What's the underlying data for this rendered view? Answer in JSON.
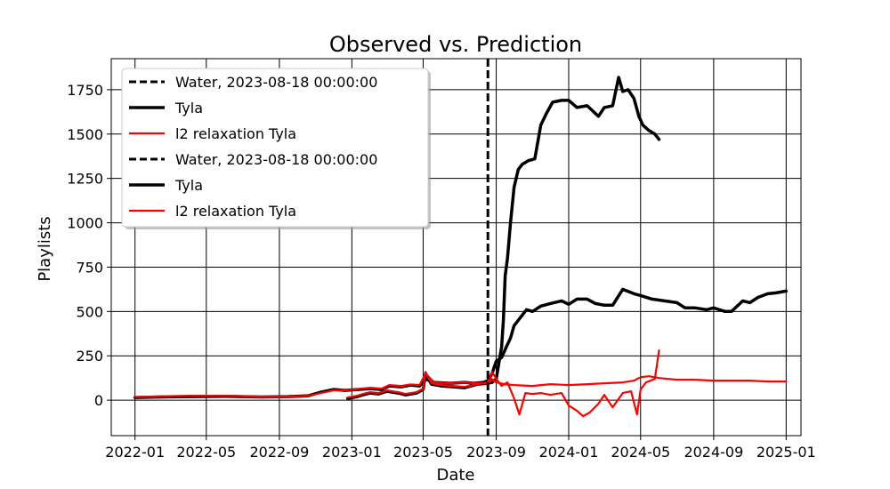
{
  "chart_data": {
    "type": "line",
    "title": "Observed vs. Prediction",
    "xlabel": "Date",
    "ylabel": "Playlists",
    "xlim": [
      "2021-11-22",
      "2025-01-26"
    ],
    "ylim": [
      -200,
      1925
    ],
    "x_ticks": [
      {
        "date": "2022-01-01",
        "label": "2022-01"
      },
      {
        "date": "2022-05-01",
        "label": "2022-05"
      },
      {
        "date": "2022-09-01",
        "label": "2022-09"
      },
      {
        "date": "2023-01-01",
        "label": "2023-01"
      },
      {
        "date": "2023-05-01",
        "label": "2023-05"
      },
      {
        "date": "2023-09-01",
        "label": "2023-09"
      },
      {
        "date": "2024-01-01",
        "label": "2024-01"
      },
      {
        "date": "2024-05-01",
        "label": "2024-05"
      },
      {
        "date": "2024-09-01",
        "label": "2024-09"
      },
      {
        "date": "2025-01-01",
        "label": "2025-01"
      }
    ],
    "y_ticks": [
      0,
      250,
      500,
      750,
      1000,
      1250,
      1500,
      1750
    ],
    "grid": true,
    "legend_position": "top-left",
    "legend": [
      {
        "label": "Water, 2023-08-18 00:00:00",
        "style": "dashed",
        "color": "#000000"
      },
      {
        "label": "Tyla",
        "style": "solid-thick",
        "color": "#000000"
      },
      {
        "label": "l2 relaxation Tyla",
        "style": "solid",
        "color": "#ff0000"
      },
      {
        "label": "Water, 2023-08-18 00:00:00",
        "style": "dashed",
        "color": "#000000"
      },
      {
        "label": "Tyla",
        "style": "solid-thick",
        "color": "#000000"
      },
      {
        "label": "l2 relaxation Tyla",
        "style": "solid",
        "color": "#ff0000"
      }
    ],
    "vline": {
      "date": "2023-08-18",
      "style": "dashed",
      "color": "#000000"
    },
    "series": [
      {
        "name": "Tyla",
        "color": "#000000",
        "style": "solid-thick",
        "points": [
          [
            "2022-01-01",
            15
          ],
          [
            "2022-02-15",
            18
          ],
          [
            "2022-04-01",
            20
          ],
          [
            "2022-06-01",
            22
          ],
          [
            "2022-08-01",
            18
          ],
          [
            "2022-09-15",
            20
          ],
          [
            "2022-10-20",
            25
          ],
          [
            "2022-11-10",
            45
          ],
          [
            "2022-12-01",
            60
          ],
          [
            "2022-12-20",
            55
          ],
          [
            "2023-01-10",
            60
          ],
          [
            "2023-02-01",
            65
          ],
          [
            "2023-02-20",
            60
          ],
          [
            "2023-03-05",
            80
          ],
          [
            "2023-03-25",
            75
          ],
          [
            "2023-04-10",
            85
          ],
          [
            "2023-04-25",
            80
          ],
          [
            "2023-05-05",
            120
          ],
          [
            "2023-05-20",
            100
          ],
          [
            "2023-06-15",
            95
          ],
          [
            "2023-07-10",
            100
          ],
          [
            "2023-07-25",
            95
          ],
          [
            "2023-08-10",
            100
          ],
          [
            "2023-08-18",
            110
          ],
          [
            "2023-08-25",
            150
          ],
          [
            "2023-09-01",
            220
          ],
          [
            "2023-09-10",
            240
          ],
          [
            "2023-09-18",
            300
          ],
          [
            "2023-09-25",
            350
          ],
          [
            "2023-10-01",
            420
          ],
          [
            "2023-10-08",
            450
          ],
          [
            "2023-10-15",
            480
          ],
          [
            "2023-10-22",
            510
          ],
          [
            "2023-11-01",
            500
          ],
          [
            "2023-11-15",
            530
          ],
          [
            "2023-12-01",
            545
          ],
          [
            "2023-12-20",
            560
          ],
          [
            "2024-01-01",
            540
          ],
          [
            "2024-01-15",
            570
          ],
          [
            "2024-02-01",
            570
          ],
          [
            "2024-02-15",
            545
          ],
          [
            "2024-03-01",
            535
          ],
          [
            "2024-03-15",
            535
          ],
          [
            "2024-04-01",
            625
          ],
          [
            "2024-04-20",
            600
          ],
          [
            "2024-05-01",
            590
          ],
          [
            "2024-05-20",
            570
          ],
          [
            "2024-06-10",
            560
          ],
          [
            "2024-07-01",
            550
          ],
          [
            "2024-07-15",
            520
          ],
          [
            "2024-08-01",
            520
          ],
          [
            "2024-08-20",
            510
          ],
          [
            "2024-09-01",
            520
          ],
          [
            "2024-09-20",
            500
          ],
          [
            "2024-10-01",
            500
          ],
          [
            "2024-10-20",
            560
          ],
          [
            "2024-11-01",
            550
          ],
          [
            "2024-11-15",
            580
          ],
          [
            "2024-12-01",
            600
          ],
          [
            "2024-12-15",
            605
          ],
          [
            "2025-01-01",
            615
          ]
        ]
      },
      {
        "name": "Tyla",
        "color": "#000000",
        "style": "solid-thick",
        "points": [
          [
            "2022-12-25",
            10
          ],
          [
            "2023-01-10",
            20
          ],
          [
            "2023-01-20",
            30
          ],
          [
            "2023-02-01",
            40
          ],
          [
            "2023-02-15",
            35
          ],
          [
            "2023-03-01",
            50
          ],
          [
            "2023-03-20",
            40
          ],
          [
            "2023-04-01",
            30
          ],
          [
            "2023-04-20",
            40
          ],
          [
            "2023-05-01",
            60
          ],
          [
            "2023-05-05",
            150
          ],
          [
            "2023-05-15",
            90
          ],
          [
            "2023-06-01",
            80
          ],
          [
            "2023-06-20",
            75
          ],
          [
            "2023-07-10",
            70
          ],
          [
            "2023-08-01",
            90
          ],
          [
            "2023-08-18",
            95
          ],
          [
            "2023-08-25",
            100
          ],
          [
            "2023-09-01",
            120
          ],
          [
            "2023-09-05",
            200
          ],
          [
            "2023-09-10",
            300
          ],
          [
            "2023-09-13",
            450
          ],
          [
            "2023-09-16",
            700
          ],
          [
            "2023-09-20",
            800
          ],
          [
            "2023-09-25",
            1000
          ],
          [
            "2023-10-01",
            1200
          ],
          [
            "2023-10-08",
            1300
          ],
          [
            "2023-10-15",
            1330
          ],
          [
            "2023-10-25",
            1350
          ],
          [
            "2023-11-05",
            1360
          ],
          [
            "2023-11-15",
            1550
          ],
          [
            "2023-11-25",
            1620
          ],
          [
            "2023-12-05",
            1680
          ],
          [
            "2023-12-20",
            1690
          ],
          [
            "2024-01-01",
            1690
          ],
          [
            "2024-01-15",
            1650
          ],
          [
            "2024-02-01",
            1660
          ],
          [
            "2024-02-20",
            1600
          ],
          [
            "2024-03-01",
            1650
          ],
          [
            "2024-03-15",
            1660
          ],
          [
            "2024-03-25",
            1820
          ],
          [
            "2024-04-01",
            1740
          ],
          [
            "2024-04-10",
            1750
          ],
          [
            "2024-04-20",
            1700
          ],
          [
            "2024-04-28",
            1600
          ],
          [
            "2024-05-05",
            1550
          ],
          [
            "2024-05-15",
            1520
          ],
          [
            "2024-05-25",
            1500
          ],
          [
            "2024-06-01",
            1470
          ]
        ]
      },
      {
        "name": "l2 relaxation Tyla",
        "color": "#ff0000",
        "style": "solid",
        "points": [
          [
            "2022-01-01",
            18
          ],
          [
            "2022-02-15",
            22
          ],
          [
            "2022-04-01",
            25
          ],
          [
            "2022-06-01",
            25
          ],
          [
            "2022-08-01",
            20
          ],
          [
            "2022-09-15",
            20
          ],
          [
            "2022-10-20",
            25
          ],
          [
            "2022-11-10",
            40
          ],
          [
            "2022-12-01",
            55
          ],
          [
            "2022-12-20",
            55
          ],
          [
            "2023-01-10",
            62
          ],
          [
            "2023-02-01",
            70
          ],
          [
            "2023-02-20",
            65
          ],
          [
            "2023-03-05",
            85
          ],
          [
            "2023-03-25",
            80
          ],
          [
            "2023-04-10",
            88
          ],
          [
            "2023-04-25",
            85
          ],
          [
            "2023-05-05",
            150
          ],
          [
            "2023-05-20",
            100
          ],
          [
            "2023-06-15",
            95
          ],
          [
            "2023-07-10",
            100
          ],
          [
            "2023-07-25",
            95
          ],
          [
            "2023-08-10",
            95
          ],
          [
            "2023-08-18",
            90
          ],
          [
            "2023-08-25",
            120
          ],
          [
            "2023-09-01",
            100
          ],
          [
            "2023-09-15",
            90
          ],
          [
            "2023-10-01",
            85
          ],
          [
            "2023-11-01",
            80
          ],
          [
            "2023-12-01",
            90
          ],
          [
            "2024-01-01",
            85
          ],
          [
            "2024-02-01",
            90
          ],
          [
            "2024-03-01",
            95
          ],
          [
            "2024-04-01",
            100
          ],
          [
            "2024-04-20",
            110
          ],
          [
            "2024-05-01",
            130
          ],
          [
            "2024-05-15",
            135
          ],
          [
            "2024-06-01",
            125
          ],
          [
            "2024-07-01",
            115
          ],
          [
            "2024-08-01",
            115
          ],
          [
            "2024-09-01",
            110
          ],
          [
            "2024-10-01",
            110
          ],
          [
            "2024-11-01",
            110
          ],
          [
            "2024-12-01",
            105
          ],
          [
            "2025-01-01",
            105
          ]
        ]
      },
      {
        "name": "l2 relaxation Tyla",
        "color": "#ff0000",
        "style": "solid",
        "points": [
          [
            "2022-12-25",
            15
          ],
          [
            "2023-01-10",
            25
          ],
          [
            "2023-01-20",
            35
          ],
          [
            "2023-02-01",
            45
          ],
          [
            "2023-02-15",
            40
          ],
          [
            "2023-03-01",
            55
          ],
          [
            "2023-03-20",
            45
          ],
          [
            "2023-04-01",
            35
          ],
          [
            "2023-04-20",
            45
          ],
          [
            "2023-05-01",
            65
          ],
          [
            "2023-05-05",
            160
          ],
          [
            "2023-05-15",
            95
          ],
          [
            "2023-06-01",
            85
          ],
          [
            "2023-06-20",
            80
          ],
          [
            "2023-07-10",
            75
          ],
          [
            "2023-08-01",
            90
          ],
          [
            "2023-08-18",
            100
          ],
          [
            "2023-08-25",
            160
          ],
          [
            "2023-09-01",
            120
          ],
          [
            "2023-09-10",
            80
          ],
          [
            "2023-09-20",
            100
          ],
          [
            "2023-10-01",
            10
          ],
          [
            "2023-10-10",
            -80
          ],
          [
            "2023-10-20",
            40
          ],
          [
            "2023-11-01",
            35
          ],
          [
            "2023-11-15",
            40
          ],
          [
            "2023-12-01",
            30
          ],
          [
            "2023-12-20",
            40
          ],
          [
            "2024-01-01",
            -30
          ],
          [
            "2024-01-15",
            -60
          ],
          [
            "2024-01-25",
            -90
          ],
          [
            "2024-02-05",
            -70
          ],
          [
            "2024-02-20",
            -20
          ],
          [
            "2024-03-01",
            30
          ],
          [
            "2024-03-15",
            -40
          ],
          [
            "2024-04-01",
            40
          ],
          [
            "2024-04-15",
            50
          ],
          [
            "2024-04-25",
            -80
          ],
          [
            "2024-05-01",
            60
          ],
          [
            "2024-05-10",
            100
          ],
          [
            "2024-05-25",
            120
          ],
          [
            "2024-06-01",
            280
          ]
        ]
      }
    ]
  }
}
